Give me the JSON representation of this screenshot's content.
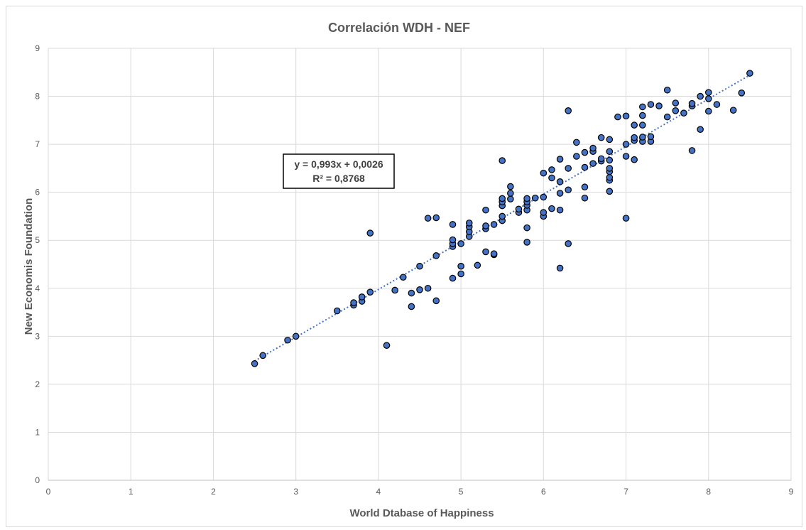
{
  "chart_data": {
    "type": "scatter",
    "title": "Correlación WDH - NEF",
    "xlabel": "World Dtabase of Happiness",
    "ylabel": "New Economis Foundation",
    "xlim": [
      0,
      9
    ],
    "ylim": [
      0,
      9
    ],
    "x_ticks": [
      "0",
      "1",
      "2",
      "3",
      "4",
      "5",
      "6",
      "7",
      "8",
      "9"
    ],
    "y_ticks": [
      "0",
      "1",
      "2",
      "3",
      "4",
      "5",
      "6",
      "7",
      "8",
      "9"
    ],
    "grid": "vertical and horizontal major gridlines",
    "legend": "none",
    "marker_color": "#4472c4",
    "marker_edge_color": "#000000",
    "trendline": {
      "type": "linear",
      "style": "dotted",
      "color": "#4472c4",
      "slope": 0.993,
      "intercept": 0.0026,
      "x_range": [
        2.5,
        8.5
      ],
      "equation_label": "y = 0,993x + 0,0026",
      "r2_label": "R² = 0,8768"
    },
    "points": [
      [
        2.5,
        2.43
      ],
      [
        2.6,
        2.6
      ],
      [
        2.9,
        2.92
      ],
      [
        3.0,
        3.0
      ],
      [
        3.5,
        3.53
      ],
      [
        3.7,
        3.65
      ],
      [
        3.7,
        3.7
      ],
      [
        3.8,
        3.73
      ],
      [
        3.8,
        3.82
      ],
      [
        3.9,
        3.92
      ],
      [
        3.9,
        5.15
      ],
      [
        4.1,
        2.81
      ],
      [
        4.2,
        3.96
      ],
      [
        4.3,
        4.23
      ],
      [
        4.4,
        3.62
      ],
      [
        4.4,
        3.9
      ],
      [
        4.5,
        3.97
      ],
      [
        4.5,
        4.46
      ],
      [
        4.6,
        4.0
      ],
      [
        4.6,
        5.46
      ],
      [
        4.7,
        3.74
      ],
      [
        4.7,
        4.68
      ],
      [
        4.7,
        5.47
      ],
      [
        4.9,
        4.21
      ],
      [
        4.9,
        4.87
      ],
      [
        4.9,
        4.93
      ],
      [
        4.9,
        5.01
      ],
      [
        4.9,
        5.33
      ],
      [
        5.0,
        4.3
      ],
      [
        5.0,
        4.46
      ],
      [
        5.0,
        4.93
      ],
      [
        5.1,
        5.08
      ],
      [
        5.1,
        5.18
      ],
      [
        5.1,
        5.28
      ],
      [
        5.1,
        5.36
      ],
      [
        5.2,
        4.48
      ],
      [
        5.3,
        4.76
      ],
      [
        5.3,
        5.24
      ],
      [
        5.3,
        5.3
      ],
      [
        5.3,
        5.63
      ],
      [
        5.4,
        4.7
      ],
      [
        5.4,
        4.72
      ],
      [
        5.4,
        5.33
      ],
      [
        5.5,
        5.41
      ],
      [
        5.5,
        5.5
      ],
      [
        5.5,
        5.72
      ],
      [
        5.5,
        5.8
      ],
      [
        5.5,
        5.87
      ],
      [
        5.5,
        6.66
      ],
      [
        5.6,
        5.86
      ],
      [
        5.6,
        5.98
      ],
      [
        5.6,
        6.12
      ],
      [
        5.7,
        5.58
      ],
      [
        5.7,
        5.65
      ],
      [
        5.8,
        4.96
      ],
      [
        5.8,
        5.26
      ],
      [
        5.8,
        5.63
      ],
      [
        5.8,
        5.73
      ],
      [
        5.8,
        5.8
      ],
      [
        5.8,
        5.87
      ],
      [
        5.9,
        5.88
      ],
      [
        6.0,
        5.5
      ],
      [
        6.0,
        5.58
      ],
      [
        6.0,
        5.9
      ],
      [
        6.0,
        6.4
      ],
      [
        6.1,
        5.66
      ],
      [
        6.1,
        6.3
      ],
      [
        6.1,
        6.47
      ],
      [
        6.2,
        4.42
      ],
      [
        6.2,
        5.63
      ],
      [
        6.2,
        5.98
      ],
      [
        6.2,
        6.22
      ],
      [
        6.2,
        6.69
      ],
      [
        6.3,
        4.93
      ],
      [
        6.3,
        6.05
      ],
      [
        6.3,
        6.5
      ],
      [
        6.3,
        7.7
      ],
      [
        6.4,
        6.75
      ],
      [
        6.4,
        7.04
      ],
      [
        6.5,
        5.88
      ],
      [
        6.5,
        6.11
      ],
      [
        6.5,
        6.52
      ],
      [
        6.5,
        6.83
      ],
      [
        6.6,
        6.6
      ],
      [
        6.6,
        6.85
      ],
      [
        6.6,
        6.92
      ],
      [
        6.7,
        6.65
      ],
      [
        6.7,
        6.7
      ],
      [
        6.7,
        7.14
      ],
      [
        6.8,
        6.02
      ],
      [
        6.8,
        6.25
      ],
      [
        6.8,
        6.31
      ],
      [
        6.8,
        6.43
      ],
      [
        6.8,
        6.5
      ],
      [
        6.8,
        6.67
      ],
      [
        6.8,
        6.85
      ],
      [
        6.8,
        7.1
      ],
      [
        6.9,
        7.57
      ],
      [
        7.0,
        5.46
      ],
      [
        7.0,
        6.75
      ],
      [
        7.0,
        7.0
      ],
      [
        7.0,
        7.59
      ],
      [
        7.1,
        6.68
      ],
      [
        7.1,
        7.08
      ],
      [
        7.1,
        7.14
      ],
      [
        7.1,
        7.4
      ],
      [
        7.2,
        7.06
      ],
      [
        7.2,
        7.15
      ],
      [
        7.2,
        7.4
      ],
      [
        7.2,
        7.6
      ],
      [
        7.2,
        7.78
      ],
      [
        7.3,
        7.06
      ],
      [
        7.3,
        7.16
      ],
      [
        7.3,
        7.83
      ],
      [
        7.4,
        7.8
      ],
      [
        7.5,
        7.57
      ],
      [
        7.5,
        8.13
      ],
      [
        7.6,
        7.7
      ],
      [
        7.6,
        7.86
      ],
      [
        7.7,
        7.65
      ],
      [
        7.8,
        6.87
      ],
      [
        7.8,
        7.8
      ],
      [
        7.8,
        7.85
      ],
      [
        7.9,
        7.31
      ],
      [
        7.9,
        8.0
      ],
      [
        8.0,
        7.69
      ],
      [
        8.0,
        7.95
      ],
      [
        8.0,
        8.08
      ],
      [
        8.1,
        7.83
      ],
      [
        8.3,
        7.71
      ],
      [
        8.4,
        8.07
      ],
      [
        8.5,
        8.48
      ]
    ]
  }
}
